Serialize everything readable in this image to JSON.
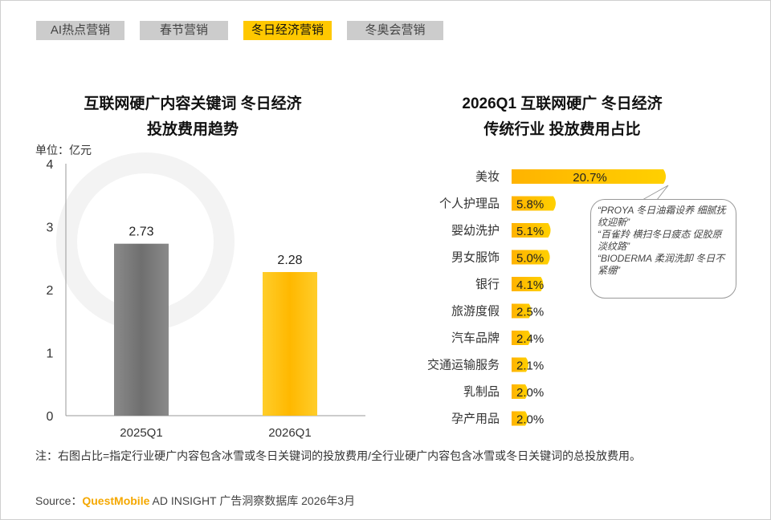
{
  "tabs": [
    {
      "label": "AI热点营销",
      "active": false
    },
    {
      "label": "春节营销",
      "active": false
    },
    {
      "label": "冬日经济营销",
      "active": true
    },
    {
      "label": "冬奥会营销",
      "active": false
    }
  ],
  "watermark": "QUESTMOBILE",
  "colors": {
    "accent": "#ffc000",
    "gray_bar": "#7a7a7a",
    "tab_active": "#ffc800",
    "tab_inactive": "#cccccc"
  },
  "chart_data": [
    {
      "type": "bar",
      "title_lines": [
        "互联网硬广内容关键词 冬日经济",
        "投放费用趋势"
      ],
      "unit_label": "单位：亿元",
      "categories": [
        "2025Q1",
        "2026Q1"
      ],
      "values": [
        2.73,
        2.28
      ],
      "data_labels": [
        "2.73",
        "2.28"
      ],
      "bar_colors": [
        "#7a7a7a",
        "#ffc000"
      ],
      "ylim": [
        0,
        4
      ],
      "yticks": [
        "0",
        "1",
        "2",
        "3",
        "4"
      ],
      "grid": false
    },
    {
      "type": "bar",
      "orientation": "horizontal",
      "title_lines": [
        "2026Q1 互联网硬广 冬日经济",
        "传统行业 投放费用占比"
      ],
      "categories": [
        "美妆",
        "个人护理品",
        "婴幼洗护",
        "男女服饰",
        "银行",
        "旅游度假",
        "汽车品牌",
        "交通运输服务",
        "乳制品",
        "孕产用品"
      ],
      "values": [
        20.7,
        5.8,
        5.1,
        5.0,
        4.1,
        2.5,
        2.4,
        2.1,
        2.0,
        2.0
      ],
      "data_labels": [
        "20.7%",
        "5.8%",
        "5.1%",
        "5.0%",
        "4.1%",
        "2.5%",
        "2.4%",
        "2.1%",
        "2.0%",
        "2.0%"
      ],
      "unit": "%",
      "annotation": {
        "target": "美妆",
        "lines": [
          "“PROYA 冬日油霜设养 细腻抚纹迎新”",
          "“百雀羚 横扫冬日疲态 促胶原 淡纹路”",
          "“BIODERMA 柔润洗卸 冬日不紧绷”"
        ]
      }
    }
  ],
  "footer": {
    "note": "注：右图占比=指定行业硬广内容包含冰雪或冬日关键词的投放费用/全行业硬广内容包含冰雪或冬日关键词的总投放费用。",
    "source_prefix": "Source：",
    "source_brand": "QuestMobile",
    "source_rest": " AD INSIGHT 广告洞察数据库 2026年3月"
  }
}
